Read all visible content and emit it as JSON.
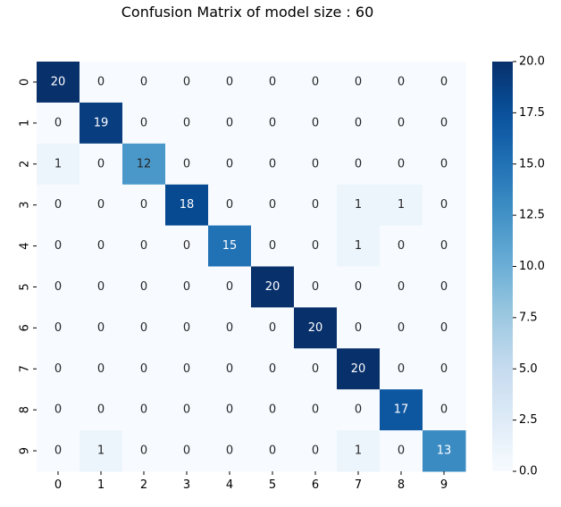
{
  "chart_data": {
    "type": "heatmap",
    "title": "Confusion Matrix of model size : 60",
    "xlabel": "",
    "ylabel": "",
    "x_categories": [
      "0",
      "1",
      "2",
      "3",
      "4",
      "5",
      "6",
      "7",
      "8",
      "9"
    ],
    "y_categories": [
      "0",
      "1",
      "2",
      "3",
      "4",
      "5",
      "6",
      "7",
      "8",
      "9"
    ],
    "values": [
      [
        20,
        0,
        0,
        0,
        0,
        0,
        0,
        0,
        0,
        0
      ],
      [
        0,
        19,
        0,
        0,
        0,
        0,
        0,
        0,
        0,
        0
      ],
      [
        1,
        0,
        12,
        0,
        0,
        0,
        0,
        0,
        0,
        0
      ],
      [
        0,
        0,
        0,
        18,
        0,
        0,
        0,
        1,
        1,
        0
      ],
      [
        0,
        0,
        0,
        0,
        15,
        0,
        0,
        1,
        0,
        0
      ],
      [
        0,
        0,
        0,
        0,
        0,
        20,
        0,
        0,
        0,
        0
      ],
      [
        0,
        0,
        0,
        0,
        0,
        0,
        20,
        0,
        0,
        0
      ],
      [
        0,
        0,
        0,
        0,
        0,
        0,
        0,
        20,
        0,
        0
      ],
      [
        0,
        0,
        0,
        0,
        0,
        0,
        0,
        0,
        17,
        0
      ],
      [
        0,
        1,
        0,
        0,
        0,
        0,
        0,
        1,
        0,
        13
      ]
    ],
    "annotated": true,
    "colormap": "Blues",
    "color_range": [
      0,
      20
    ],
    "colorbar": {
      "placement": "right",
      "ticks": [
        0,
        2.5,
        5,
        7.5,
        10,
        12.5,
        15,
        17.5,
        20
      ],
      "tick_labels": [
        "0.0",
        "2.5",
        "5.0",
        "7.5",
        "10.0",
        "12.5",
        "15.0",
        "17.5",
        "20.0"
      ]
    },
    "grid": false
  }
}
